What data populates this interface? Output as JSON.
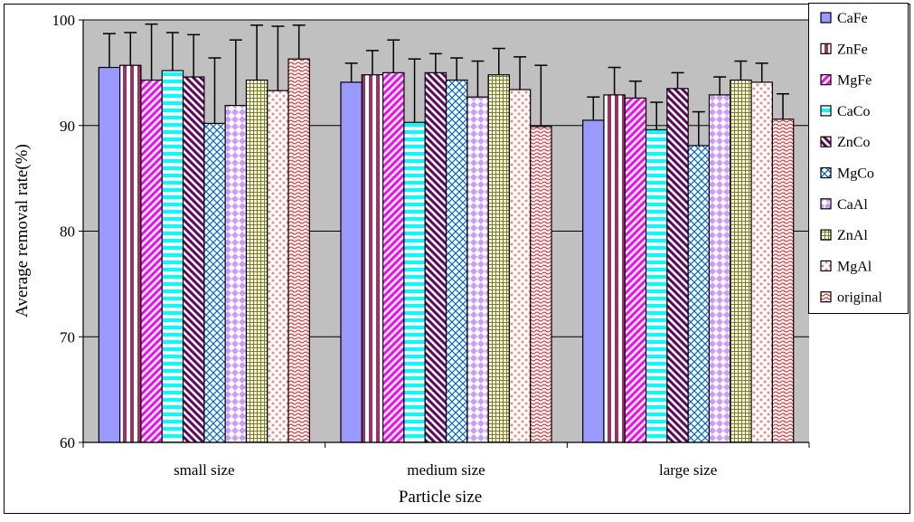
{
  "chart_data": {
    "type": "bar",
    "title": "",
    "xlabel": "Particle size",
    "ylabel": "Average removal rate(%)",
    "ylim": [
      60,
      100
    ],
    "yticks": [
      60,
      70,
      80,
      90,
      100
    ],
    "grid": true,
    "legend_position": "right",
    "categories": [
      "small size",
      "medium size",
      "large size"
    ],
    "series": [
      {
        "name": "CaFe",
        "values": [
          95.5,
          94.1,
          90.5
        ],
        "errors": [
          3.2,
          1.8,
          2.2
        ],
        "color": "#9999ff",
        "pattern": "solid"
      },
      {
        "name": "ZnFe",
        "values": [
          95.7,
          94.8,
          92.9
        ],
        "errors": [
          3.1,
          2.3,
          2.6
        ],
        "color": "#993366",
        "pattern": "vstripe"
      },
      {
        "name": "MgFe",
        "values": [
          94.3,
          95.0,
          92.6
        ],
        "errors": [
          5.3,
          3.1,
          1.6
        ],
        "color": "#ff00ff",
        "pattern": "diagup"
      },
      {
        "name": "CaCo",
        "values": [
          95.2,
          90.3,
          89.6
        ],
        "errors": [
          3.6,
          6.0,
          2.6
        ],
        "color": "#00ffff",
        "pattern": "hstripe"
      },
      {
        "name": "ZnCo",
        "values": [
          94.6,
          95.0,
          93.5
        ],
        "errors": [
          4.0,
          1.8,
          1.5
        ],
        "color": "#660066",
        "pattern": "diagdown"
      },
      {
        "name": "MgCo",
        "values": [
          90.2,
          94.3,
          88.1
        ],
        "errors": [
          6.2,
          2.1,
          3.2
        ],
        "color": "#0066cc",
        "pattern": "crosshatch"
      },
      {
        "name": "CaAl",
        "values": [
          91.9,
          92.7,
          92.9
        ],
        "errors": [
          6.2,
          3.4,
          1.7
        ],
        "color": "#cc99ff",
        "pattern": "diamonds"
      },
      {
        "name": "ZnAl",
        "values": [
          94.3,
          94.8,
          94.3
        ],
        "errors": [
          5.2,
          2.5,
          1.8
        ],
        "color": "#808000",
        "pattern": "grid"
      },
      {
        "name": "MgAl",
        "values": [
          93.3,
          93.4,
          94.1
        ],
        "errors": [
          6.1,
          3.1,
          1.8
        ],
        "color": "#ff8080",
        "pattern": "dots"
      },
      {
        "name": "original",
        "values": [
          96.3,
          89.9,
          90.6
        ],
        "errors": [
          3.2,
          5.8,
          2.4
        ],
        "color": "#ff0000",
        "pattern": "waves"
      }
    ]
  }
}
